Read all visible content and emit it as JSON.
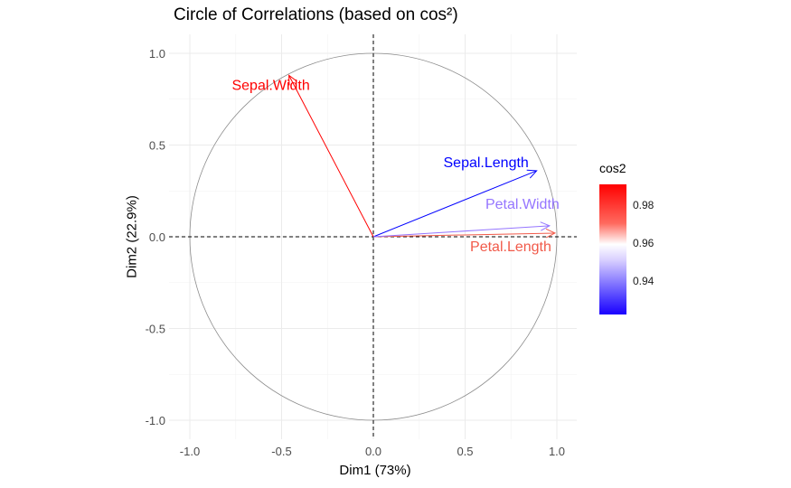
{
  "chart_data": {
    "type": "scatter",
    "title": "Circle of Correlations (based on cos²)",
    "xlabel": "Dim1 (73%)",
    "ylabel": "Dim2 (22.9%)",
    "xlim": [
      -1.1,
      1.1
    ],
    "ylim": [
      -1.1,
      1.1
    ],
    "xticks": [
      "-1.0",
      "-0.5",
      "0.0",
      "0.5",
      "1.0"
    ],
    "yticks": [
      "-1.0",
      "-0.5",
      "0.0",
      "0.5",
      "1.0"
    ],
    "grid": true,
    "unit_circle": true,
    "reference_lines": [
      "x=0",
      "y=0"
    ],
    "variables": [
      {
        "name": "Sepal.Length",
        "x": 0.89,
        "y": 0.36,
        "cos2": 0.926,
        "color": "#0000ff"
      },
      {
        "name": "Sepal.Width",
        "x": -0.46,
        "y": 0.88,
        "cos2": 0.99,
        "color": "#ff0000"
      },
      {
        "name": "Petal.Length",
        "x": 0.99,
        "y": 0.02,
        "cos2": 0.981,
        "color": "#f15a4a"
      },
      {
        "name": "Petal.Width",
        "x": 0.96,
        "y": 0.06,
        "cos2": 0.937,
        "color": "#9575ff"
      }
    ],
    "legend": {
      "title": "cos2",
      "placement": "right",
      "ticks": [
        "0.98",
        "0.96",
        "0.94"
      ],
      "colors": {
        "low": "#1a00ff",
        "mid": "#ffffff",
        "high": "#ff0000"
      }
    }
  }
}
